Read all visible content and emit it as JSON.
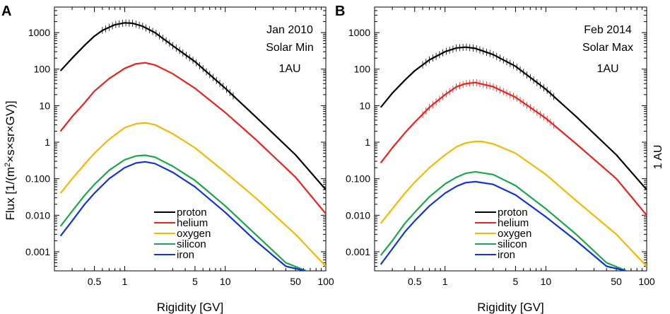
{
  "figure": {
    "ylabel_prefix": "Flux  [1/(m",
    "ylabel_sup": "2",
    "ylabel_suffix": "×s×sr×GV)]",
    "side_label": "1 AU"
  },
  "chart_data": [
    {
      "type": "line",
      "panel_letter": "A",
      "annotations": [
        "Jan 2010",
        "Solar Min",
        "1AU"
      ],
      "xlabel": "Rigidity [GV]",
      "ylabel": "Flux [1/(m²×s×sr×GV)]",
      "xscale": "log",
      "yscale": "log",
      "xlim": [
        0.2,
        100
      ],
      "ylim": [
        0.0003,
        5000
      ],
      "xticks": [
        0.5,
        1,
        5,
        10,
        50,
        100
      ],
      "xtick_labels": [
        "0.5",
        "1",
        "5",
        "10",
        "50",
        "100"
      ],
      "yticks": [
        1000,
        100,
        10,
        1,
        0.1,
        0.01,
        0.001
      ],
      "ytick_labels": [
        "1000",
        "100",
        "10",
        "1",
        "0.100",
        "0.010",
        "0.001"
      ],
      "legend_position": "bottom-center",
      "series": [
        {
          "name": "proton",
          "color": "#000000",
          "error_bars": true,
          "x": [
            0.23,
            0.3,
            0.4,
            0.5,
            0.6,
            0.8,
            1.0,
            1.2,
            1.5,
            2,
            3,
            5,
            10,
            20,
            50,
            100
          ],
          "y": [
            90,
            200,
            450,
            800,
            1150,
            1650,
            1850,
            1800,
            1500,
            1000,
            440,
            160,
            30,
            5,
            0.45,
            0.05
          ]
        },
        {
          "name": "helium",
          "color": "#e8221c",
          "x": [
            0.23,
            0.3,
            0.4,
            0.5,
            0.7,
            1.0,
            1.3,
            1.6,
            2,
            3,
            5,
            10,
            20,
            50,
            100
          ],
          "y": [
            2,
            5,
            12,
            25,
            55,
            105,
            140,
            150,
            130,
            75,
            30,
            6.5,
            1.2,
            0.11,
            0.011
          ]
        },
        {
          "name": "oxygen",
          "color": "#f5b800",
          "x": [
            0.23,
            0.3,
            0.4,
            0.5,
            0.7,
            1.0,
            1.3,
            1.6,
            2,
            3,
            5,
            10,
            20,
            50,
            100
          ],
          "y": [
            0.04,
            0.1,
            0.25,
            0.5,
            1.2,
            2.5,
            3.2,
            3.4,
            3.0,
            1.7,
            0.7,
            0.15,
            0.03,
            0.003,
            0.0004
          ]
        },
        {
          "name": "silicon",
          "color": "#1aa64a",
          "x": [
            0.23,
            0.3,
            0.4,
            0.5,
            0.7,
            1.0,
            1.3,
            1.6,
            2,
            3,
            5,
            10,
            20,
            40,
            64
          ],
          "y": [
            0.005,
            0.013,
            0.035,
            0.07,
            0.17,
            0.33,
            0.42,
            0.44,
            0.39,
            0.22,
            0.09,
            0.018,
            0.003,
            0.0005,
            0.0003
          ]
        },
        {
          "name": "iron",
          "color": "#1433d6",
          "x": [
            0.23,
            0.3,
            0.4,
            0.5,
            0.7,
            1.0,
            1.3,
            1.6,
            2,
            3,
            5,
            10,
            20,
            40,
            62
          ],
          "y": [
            0.0027,
            0.007,
            0.02,
            0.04,
            0.1,
            0.2,
            0.27,
            0.29,
            0.26,
            0.15,
            0.06,
            0.012,
            0.002,
            0.0004,
            0.0003
          ]
        }
      ]
    },
    {
      "type": "line",
      "panel_letter": "B",
      "annotations": [
        "Feb 2014",
        "Solar Max",
        "1AU"
      ],
      "xlabel": "Rigidity [GV]",
      "ylabel": "Flux [1/(m²×s×sr×GV)]",
      "xscale": "log",
      "yscale": "log",
      "xlim": [
        0.2,
        100
      ],
      "ylim": [
        0.0003,
        5000
      ],
      "xticks": [
        0.5,
        1,
        5,
        10,
        50,
        100
      ],
      "xtick_labels": [
        "0.5",
        "1",
        "5",
        "10",
        "50",
        "100"
      ],
      "yticks": [
        1000,
        100,
        10,
        1,
        0.1,
        0.01,
        0.001
      ],
      "ytick_labels": [
        "1000",
        "100",
        "10",
        "1",
        "0.100",
        "0.010",
        "0.001"
      ],
      "legend_position": "bottom-center",
      "series": [
        {
          "name": "proton",
          "color": "#000000",
          "error_bars": true,
          "x": [
            0.23,
            0.3,
            0.4,
            0.5,
            0.7,
            1.0,
            1.3,
            1.6,
            2,
            3,
            5,
            10,
            20,
            50,
            100
          ],
          "y": [
            9,
            22,
            50,
            90,
            180,
            300,
            380,
            400,
            370,
            250,
            120,
            28,
            5,
            0.45,
            0.05
          ]
        },
        {
          "name": "helium",
          "color": "#e8221c",
          "error_bars": true,
          "x": [
            0.23,
            0.3,
            0.4,
            0.5,
            0.7,
            1.0,
            1.3,
            1.6,
            2,
            3,
            5,
            10,
            20,
            50,
            100
          ],
          "y": [
            0.27,
            0.7,
            1.8,
            3.5,
            9,
            20,
            33,
            40,
            43,
            33,
            17,
            4.5,
            0.9,
            0.1,
            0.01
          ]
        },
        {
          "name": "oxygen",
          "color": "#f5b800",
          "x": [
            0.23,
            0.3,
            0.4,
            0.5,
            0.7,
            1.0,
            1.3,
            1.6,
            2,
            2.3,
            3,
            5,
            10,
            20,
            50,
            100
          ],
          "y": [
            0.006,
            0.015,
            0.04,
            0.08,
            0.2,
            0.45,
            0.75,
            0.95,
            1.05,
            1.05,
            0.9,
            0.5,
            0.13,
            0.025,
            0.003,
            0.0004
          ]
        },
        {
          "name": "silicon",
          "color": "#1aa64a",
          "x": [
            0.23,
            0.3,
            0.4,
            0.5,
            0.7,
            1.0,
            1.3,
            1.6,
            2,
            3,
            5,
            10,
            20,
            40,
            63
          ],
          "y": [
            0.0008,
            0.002,
            0.006,
            0.012,
            0.032,
            0.072,
            0.11,
            0.14,
            0.155,
            0.13,
            0.065,
            0.015,
            0.003,
            0.0005,
            0.0003
          ]
        },
        {
          "name": "iron",
          "color": "#1433d6",
          "x": [
            0.23,
            0.3,
            0.4,
            0.5,
            0.7,
            1.0,
            1.3,
            1.6,
            2,
            3,
            5,
            10,
            20,
            40,
            62
          ],
          "y": [
            0.00045,
            0.0012,
            0.0035,
            0.007,
            0.018,
            0.04,
            0.062,
            0.078,
            0.083,
            0.07,
            0.036,
            0.009,
            0.002,
            0.0004,
            0.0003
          ]
        }
      ]
    }
  ]
}
